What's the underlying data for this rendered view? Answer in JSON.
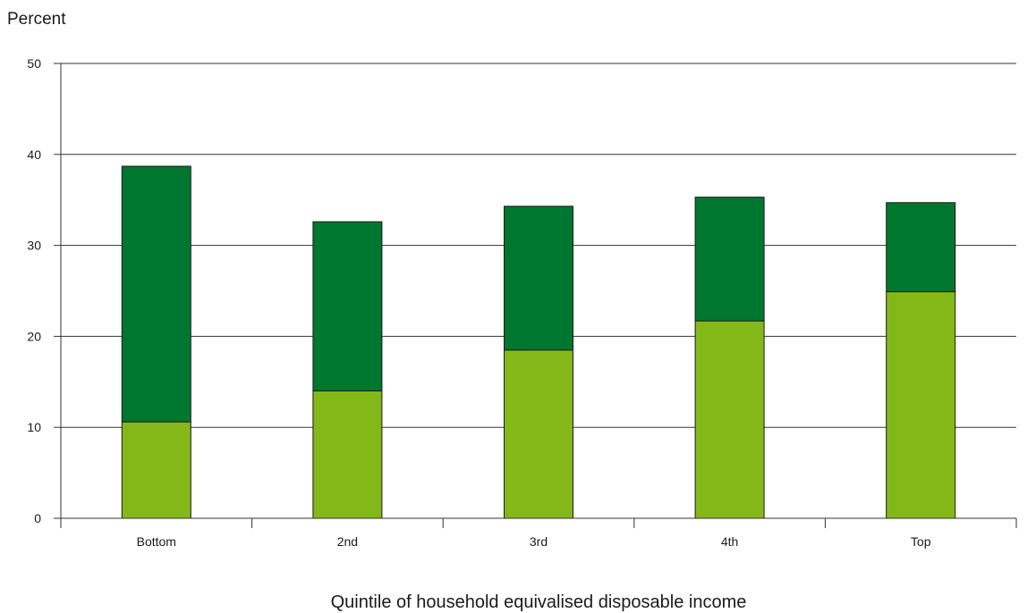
{
  "chart_data": {
    "type": "bar",
    "stacked": true,
    "title": "",
    "ylabel": "Percent",
    "xlabel": "Quintile of household equivalised disposable income",
    "ylim": [
      0,
      50
    ],
    "yticks": [
      0,
      10,
      20,
      30,
      40,
      50
    ],
    "categories": [
      "Bottom",
      "2nd",
      "3rd",
      "4th",
      "Top"
    ],
    "grid": "horizontal",
    "legend": "none",
    "series": [
      {
        "values": [
          10.6,
          14.0,
          18.5,
          21.7,
          24.9
        ],
        "color": "#84b819"
      },
      {
        "values": [
          28.1,
          18.6,
          15.8,
          13.6,
          9.8
        ],
        "color": "#00772f"
      }
    ],
    "totals": [
      38.7,
      32.6,
      34.3,
      35.3,
      34.7
    ]
  }
}
